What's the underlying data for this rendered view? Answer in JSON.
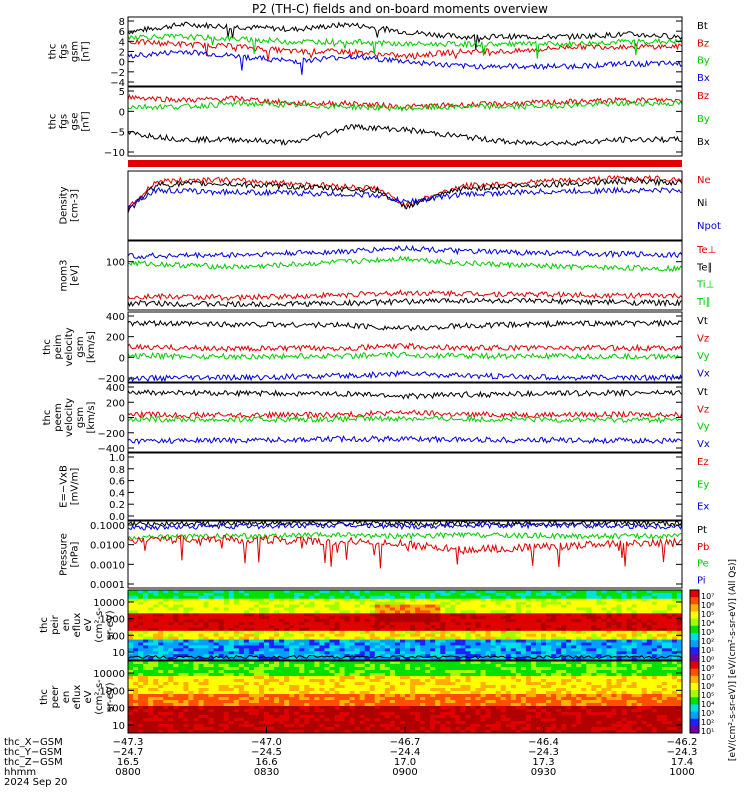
{
  "title": "P2 (TH-C) fields and on-board moments overview",
  "colors": {
    "black": "#000000",
    "red": "#e00000",
    "green": "#00cc00",
    "blue": "#0000e0"
  },
  "chart_data": [
    {
      "type": "line",
      "ylabel": [
        "thc",
        "fgs",
        "gsm",
        "[nT]"
      ],
      "yticks": [
        "8",
        "6",
        "4",
        "2",
        "0",
        "−2",
        "−4"
      ],
      "ylim": [
        -5,
        9
      ],
      "legend": [
        {
          "label": "Bt",
          "color": "black"
        },
        {
          "label": "Bz",
          "color": "red"
        },
        {
          "label": "By",
          "color": "green"
        },
        {
          "label": "Bx",
          "color": "blue"
        }
      ],
      "series": [
        {
          "name": "Bt",
          "color": "black",
          "x": [
            0,
            0.1,
            0.2,
            0.3,
            0.4,
            0.5,
            0.6,
            0.7,
            0.8,
            0.9,
            1
          ],
          "values": [
            6,
            7.5,
            7,
            6.5,
            7.5,
            6,
            5,
            5,
            5,
            5.5,
            5
          ]
        },
        {
          "name": "Bz",
          "color": "red",
          "x": [
            0,
            0.1,
            0.2,
            0.3,
            0.4,
            0.5,
            0.6,
            0.7,
            0.8,
            0.9,
            1
          ],
          "values": [
            4,
            3.5,
            3,
            2,
            2,
            1,
            2,
            2,
            3,
            3,
            3
          ]
        },
        {
          "name": "By",
          "color": "green",
          "x": [
            0,
            0.1,
            0.2,
            0.3,
            0.4,
            0.5,
            0.6,
            0.7,
            0.8,
            0.9,
            1
          ],
          "values": [
            5,
            5,
            4.5,
            4,
            4,
            3.5,
            3.5,
            3.5,
            3.5,
            4,
            4
          ]
        },
        {
          "name": "Bx",
          "color": "blue",
          "x": [
            0,
            0.1,
            0.2,
            0.3,
            0.4,
            0.5,
            0.6,
            0.7,
            0.8,
            0.9,
            1
          ],
          "values": [
            1,
            2,
            1,
            0,
            1,
            0,
            -1,
            -1,
            -1,
            -0.5,
            -0.5
          ]
        }
      ]
    },
    {
      "type": "line",
      "ylabel": [
        "thc",
        "fgs",
        "gse",
        "[nT]"
      ],
      "yticks": [
        "5",
        "0",
        "−5",
        "−10"
      ],
      "ylim": [
        -12,
        9
      ],
      "legend": [
        {
          "label": "Bz",
          "color": "red"
        },
        {
          "label": "By",
          "color": "green"
        },
        {
          "label": "Bx",
          "color": "black"
        }
      ],
      "series": [
        {
          "name": "Bz",
          "color": "red",
          "x": [
            0,
            0.1,
            0.2,
            0.3,
            0.4,
            0.5,
            0.6,
            0.7,
            0.8,
            0.9,
            1
          ],
          "values": [
            6,
            5,
            5.5,
            4,
            4,
            3,
            3.5,
            4,
            4.5,
            5,
            5
          ]
        },
        {
          "name": "By",
          "color": "green",
          "x": [
            0,
            0.1,
            0.2,
            0.3,
            0.4,
            0.5,
            0.6,
            0.7,
            0.8,
            0.9,
            1
          ],
          "values": [
            3,
            3,
            4,
            3.5,
            3,
            2.5,
            3,
            3,
            3.5,
            4,
            4
          ]
        },
        {
          "name": "Bx",
          "color": "black",
          "x": [
            0,
            0.1,
            0.2,
            0.3,
            0.4,
            0.5,
            0.6,
            0.7,
            0.8,
            0.9,
            1
          ],
          "values": [
            -5,
            -7,
            -7,
            -8,
            -3,
            -4,
            -6,
            -8,
            -8,
            -7,
            -7
          ]
        }
      ]
    },
    {
      "type": "line",
      "ylabel": [
        "Density",
        "[cm-3]"
      ],
      "yticks": [],
      "ylim": [
        0,
        1
      ],
      "legend": [
        {
          "label": "Ne",
          "color": "red"
        },
        {
          "label": "Ni",
          "color": "black"
        },
        {
          "label": "Npot",
          "color": "blue"
        }
      ],
      "series": [
        {
          "name": "Ne",
          "color": "red",
          "x": [
            0,
            0.05,
            0.15,
            0.3,
            0.45,
            0.5,
            0.6,
            0.75,
            0.9,
            1
          ],
          "values": [
            0.45,
            0.85,
            0.88,
            0.82,
            0.75,
            0.5,
            0.78,
            0.85,
            0.9,
            0.88
          ]
        },
        {
          "name": "Ni",
          "color": "black",
          "x": [
            0,
            0.05,
            0.15,
            0.3,
            0.45,
            0.5,
            0.6,
            0.75,
            0.9,
            1
          ],
          "values": [
            0.42,
            0.8,
            0.82,
            0.77,
            0.72,
            0.48,
            0.74,
            0.8,
            0.85,
            0.83
          ]
        },
        {
          "name": "Npot",
          "color": "blue",
          "x": [
            0,
            0.05,
            0.15,
            0.3,
            0.45,
            0.5,
            0.6,
            0.75,
            0.9,
            1
          ],
          "values": [
            0.5,
            0.72,
            0.7,
            0.68,
            0.65,
            0.55,
            0.66,
            0.7,
            0.72,
            0.72
          ]
        }
      ]
    },
    {
      "type": "line",
      "ylabel": [
        "mom3",
        "[eV]"
      ],
      "yticks": [
        "100"
      ],
      "ylim": [
        0,
        1
      ],
      "legend": [
        {
          "label": "Te⊥",
          "color": "red"
        },
        {
          "label": "Te∥",
          "color": "black"
        },
        {
          "label": "Ti⊥",
          "color": "green"
        },
        {
          "label": "Ti∥",
          "color": "green"
        }
      ],
      "series": [
        {
          "name": "Ti⊥",
          "color": "blue",
          "x": [
            0,
            0.2,
            0.4,
            0.5,
            0.6,
            0.8,
            1
          ],
          "values": [
            0.78,
            0.8,
            0.85,
            0.9,
            0.85,
            0.82,
            0.8
          ]
        },
        {
          "name": "Ti∥",
          "color": "green",
          "x": [
            0,
            0.2,
            0.4,
            0.5,
            0.6,
            0.8,
            1
          ],
          "values": [
            0.68,
            0.62,
            0.7,
            0.75,
            0.68,
            0.62,
            0.6
          ]
        },
        {
          "name": "Te⊥",
          "color": "red",
          "x": [
            0,
            0.2,
            0.4,
            0.5,
            0.6,
            0.8,
            1
          ],
          "values": [
            0.2,
            0.18,
            0.22,
            0.25,
            0.24,
            0.22,
            0.2
          ]
        },
        {
          "name": "Te∥",
          "color": "black",
          "x": [
            0,
            0.2,
            0.4,
            0.5,
            0.6,
            0.8,
            1
          ],
          "values": [
            0.1,
            0.08,
            0.1,
            0.12,
            0.14,
            0.12,
            0.1
          ]
        }
      ]
    },
    {
      "type": "line",
      "ylabel": [
        "thc",
        "peim",
        "velocity",
        "gsm",
        "[km/s]"
      ],
      "yticks": [
        "400",
        "200",
        "0",
        "−200"
      ],
      "ylim": [
        -350,
        450
      ],
      "legend": [
        {
          "label": "Vt",
          "color": "black"
        },
        {
          "label": "Vz",
          "color": "red"
        },
        {
          "label": "Vy",
          "color": "green"
        },
        {
          "label": "Vx",
          "color": "blue"
        }
      ],
      "series": [
        {
          "name": "Vt",
          "color": "black",
          "x": [
            0,
            0.2,
            0.4,
            0.5,
            0.6,
            0.8,
            1
          ],
          "values": [
            320,
            310,
            300,
            260,
            290,
            320,
            320
          ]
        },
        {
          "name": "Vz",
          "color": "red",
          "x": [
            0,
            0.2,
            0.4,
            0.5,
            0.6,
            0.8,
            1
          ],
          "values": [
            50,
            30,
            40,
            60,
            40,
            40,
            40
          ]
        },
        {
          "name": "Vy",
          "color": "green",
          "x": [
            0,
            0.2,
            0.4,
            0.5,
            0.6,
            0.8,
            1
          ],
          "values": [
            -50,
            -60,
            -50,
            -40,
            -50,
            -60,
            -60
          ]
        },
        {
          "name": "Vx",
          "color": "blue",
          "x": [
            0,
            0.2,
            0.4,
            0.5,
            0.6,
            0.8,
            1
          ],
          "values": [
            -310,
            -300,
            -280,
            -250,
            -280,
            -300,
            -300
          ]
        }
      ]
    },
    {
      "type": "line",
      "ylabel": [
        "thc",
        "peem",
        "velocity",
        "gsm",
        "[km/s]"
      ],
      "yticks": [
        "400",
        "200",
        "0",
        "−200",
        "−400"
      ],
      "ylim": [
        -480,
        460
      ],
      "legend": [
        {
          "label": "Vt",
          "color": "black"
        },
        {
          "label": "Vz",
          "color": "red"
        },
        {
          "label": "Vy",
          "color": "green"
        },
        {
          "label": "Vx",
          "color": "blue"
        }
      ],
      "series": [
        {
          "name": "Vt",
          "color": "black",
          "x": [
            0,
            0.2,
            0.4,
            0.5,
            0.6,
            0.8,
            1
          ],
          "values": [
            330,
            320,
            310,
            280,
            300,
            320,
            330
          ]
        },
        {
          "name": "Vz",
          "color": "red",
          "x": [
            0,
            0.2,
            0.4,
            0.5,
            0.6,
            0.8,
            1
          ],
          "values": [
            30,
            20,
            30,
            60,
            30,
            30,
            30
          ]
        },
        {
          "name": "Vy",
          "color": "green",
          "x": [
            0,
            0.2,
            0.4,
            0.5,
            0.6,
            0.8,
            1
          ],
          "values": [
            -30,
            -40,
            -30,
            -20,
            -30,
            -40,
            -40
          ]
        },
        {
          "name": "Vx",
          "color": "blue",
          "x": [
            0,
            0.2,
            0.4,
            0.5,
            0.6,
            0.8,
            1
          ],
          "values": [
            -330,
            -320,
            -300,
            -300,
            -310,
            -320,
            -330
          ]
        }
      ]
    },
    {
      "type": "line",
      "ylabel": [
        "E=−VxB",
        "[mV/m]"
      ],
      "yticks": [
        "1.0",
        "0.8",
        "0.6",
        "0.4",
        "0.2",
        "0.0"
      ],
      "ylim": [
        0,
        1
      ],
      "legend": [
        {
          "label": "Ez",
          "color": "red"
        },
        {
          "label": "Ey",
          "color": "green"
        },
        {
          "label": "Ex",
          "color": "blue"
        }
      ],
      "series": []
    },
    {
      "type": "line",
      "ylabel": [
        "Pressure",
        "[nPa]"
      ],
      "yticks": [
        "0.1000",
        "0.0100",
        "0.0010",
        "0.0001"
      ],
      "ylim": [
        -4.05,
        -0.95
      ],
      "log": true,
      "legend": [
        {
          "label": "Pt",
          "color": "black"
        },
        {
          "label": "Pb",
          "color": "red"
        },
        {
          "label": "Pe",
          "color": "green"
        },
        {
          "label": "Pi",
          "color": "blue"
        }
      ],
      "series": [
        {
          "name": "Pt",
          "color": "black",
          "x": [
            0,
            0.2,
            0.4,
            0.5,
            0.6,
            0.8,
            1
          ],
          "values": [
            -1.1,
            -1.05,
            -1.05,
            -1.08,
            -1.05,
            -1.05,
            -1.05
          ]
        },
        {
          "name": "Pi",
          "color": "blue",
          "x": [
            0,
            0.2,
            0.4,
            0.5,
            0.6,
            0.8,
            1
          ],
          "values": [
            -1.25,
            -1.2,
            -1.15,
            -1.2,
            -1.15,
            -1.15,
            -1.2
          ]
        },
        {
          "name": "Pe",
          "color": "green",
          "x": [
            0,
            0.2,
            0.4,
            0.5,
            0.6,
            0.8,
            1
          ],
          "values": [
            -1.7,
            -1.65,
            -1.6,
            -1.65,
            -1.6,
            -1.65,
            -1.65
          ]
        },
        {
          "name": "Pb",
          "color": "red",
          "x": [
            0,
            0.2,
            0.4,
            0.5,
            0.6,
            0.8,
            1
          ],
          "values": [
            -1.8,
            -1.8,
            -1.9,
            -2.0,
            -2.3,
            -2.1,
            -1.9
          ]
        }
      ]
    },
    {
      "type": "heatmap",
      "ylabel": [
        "thc",
        "peir",
        "en",
        "eflux",
        "eV",
        "(cm²-s-",
        "sr-eV)"
      ],
      "yticks": [
        "10000",
        "1000",
        "100",
        "10"
      ],
      "ylim": [
        0.6,
        4.2
      ]
    },
    {
      "type": "heatmap",
      "ylabel": [
        "thc",
        "peer",
        "en",
        "eflux",
        "eV",
        "(cm²-s-",
        "sr-eV)"
      ],
      "yticks": [
        "10000",
        "1000",
        "100",
        "10"
      ],
      "ylim": [
        0.6,
        4.2
      ]
    }
  ],
  "colorbar": {
    "ticks": [
      "10⁷",
      "10⁶",
      "10⁵",
      "10⁴",
      "10³",
      "10²",
      "10¹",
      "10⁰",
      "10⁸",
      "10⁷",
      "10⁶",
      "10⁵",
      "10⁴",
      "10³",
      "10²",
      "10¹"
    ],
    "label": "[eV/(cm²-s-sr-eV)] [eV/(cm²-s-sr-eV)] (All Qs)]"
  },
  "xaxis": {
    "rows": [
      {
        "label": "thc_X−GSM",
        "values": [
          "−47.3",
          "−47.0",
          "−46.7",
          "−46.4",
          "−46.2"
        ]
      },
      {
        "label": "thc_Y−GSM",
        "values": [
          "−24.7",
          "−24.5",
          "−24.4",
          "−24.3",
          "−24.3"
        ]
      },
      {
        "label": "thc_Z−GSM",
        "values": [
          "16.5",
          "16.6",
          "17.0",
          "17.3",
          "17.4"
        ]
      },
      {
        "label": "hhmm",
        "values": [
          "0800",
          "0830",
          "0900",
          "0930",
          "1000"
        ]
      }
    ],
    "date": "2024 Sep 20"
  }
}
